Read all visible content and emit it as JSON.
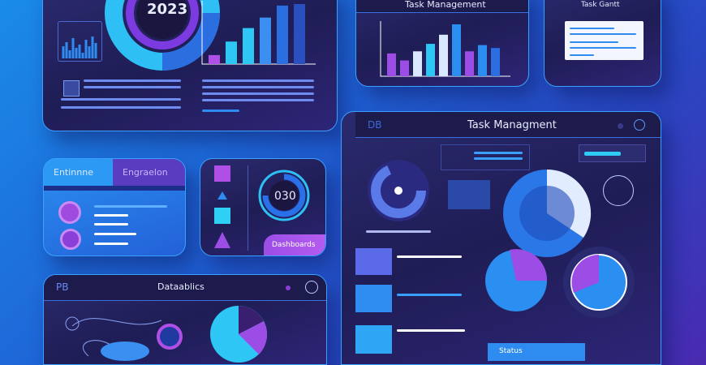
{
  "top_left_panel": {
    "year": "2023",
    "bars": [
      12,
      30,
      48,
      62,
      78,
      80
    ]
  },
  "top_mid_panel": {
    "title": "Task Management",
    "bars": [
      55,
      38,
      60,
      78,
      100,
      125,
      60,
      75,
      68
    ]
  },
  "top_right_panel": {
    "title": "Task Gantt"
  },
  "tab_panel": {
    "tabs": [
      {
        "label": "Entinnne"
      },
      {
        "label": "Engraelon"
      }
    ]
  },
  "timer_panel": {
    "timer": "030",
    "button_label": "Dashboards"
  },
  "bottom_left_panel": {
    "title": "Dataablics",
    "logo": "PB"
  },
  "task_panel": {
    "title": "Task Managment",
    "logo": "DB",
    "bottom_button": "Status"
  },
  "colors": {
    "accent": "#3aa0ff",
    "purple": "#9b4de6",
    "cyan": "#22c8f0",
    "panel": "#1f1d55"
  }
}
